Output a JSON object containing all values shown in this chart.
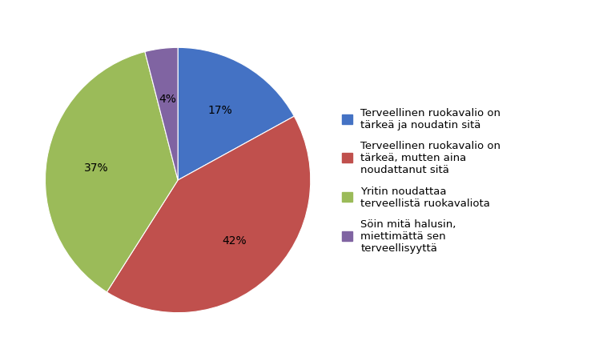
{
  "slices": [
    17,
    42,
    37,
    4
  ],
  "colors": [
    "#4472C4",
    "#C0504D",
    "#9BBB59",
    "#8064A2"
  ],
  "labels": [
    "17%",
    "42%",
    "37%",
    "4%"
  ],
  "legend_labels": [
    "Terveellinen ruokavalio on\ntärkeä ja noudatin sitä",
    "Terveellinen ruokavalio on\ntärkeä, mutten aina\nnoudattanut sitä",
    "Yritin noudattaa\nterveellistä ruokavaliota",
    "Söin mitä halusin,\nmiettimättä sen\nterveellisyyttä"
  ],
  "startangle": 90,
  "background_color": "#ffffff",
  "label_fontsize": 10,
  "legend_fontsize": 9.5
}
